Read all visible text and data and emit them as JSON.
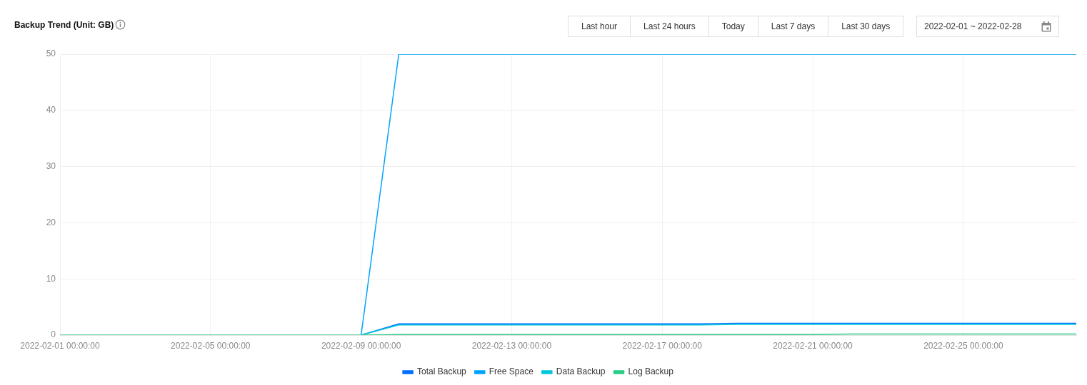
{
  "chart_data": {
    "type": "line",
    "title": "Backup Trend (Unit: GB)",
    "annotations": [
      "Last hour",
      "Last 24 hours",
      "Today",
      "Last 7 days",
      "Last 30 days",
      "2022-02-01 ~ 2022-02-28"
    ],
    "x": [
      "2022-02-01",
      "2022-02-02",
      "2022-02-03",
      "2022-02-04",
      "2022-02-05",
      "2022-02-06",
      "2022-02-07",
      "2022-02-08",
      "2022-02-09",
      "2022-02-10",
      "2022-02-11",
      "2022-02-12",
      "2022-02-13",
      "2022-02-14",
      "2022-02-15",
      "2022-02-16",
      "2022-02-17",
      "2022-02-18",
      "2022-02-19",
      "2022-02-20",
      "2022-02-21",
      "2022-02-22",
      "2022-02-23",
      "2022-02-24",
      "2022-02-25",
      "2022-02-26",
      "2022-02-27",
      "2022-02-28"
    ],
    "series": [
      {
        "name": "Total Backup",
        "color": "#006eff",
        "values": [
          null,
          null,
          null,
          null,
          null,
          null,
          null,
          null,
          0,
          2.0,
          2.0,
          2.0,
          2.0,
          2.0,
          2.0,
          2.0,
          2.0,
          2.0,
          2.1,
          2.1,
          2.1,
          2.1,
          2.1,
          2.1,
          2.1,
          2.1,
          2.1,
          2.1
        ]
      },
      {
        "name": "Free Space",
        "color": "#00a4ff",
        "values": [
          null,
          null,
          null,
          null,
          null,
          null,
          null,
          null,
          0,
          50,
          50,
          50,
          50,
          50,
          50,
          50,
          50,
          50,
          50,
          50,
          50,
          50,
          50,
          50,
          50,
          50,
          50,
          50
        ]
      },
      {
        "name": "Data Backup",
        "color": "#00c8dc",
        "values": [
          null,
          null,
          null,
          null,
          null,
          null,
          null,
          null,
          0,
          1.8,
          1.8,
          1.8,
          1.8,
          1.8,
          1.8,
          1.8,
          1.8,
          1.8,
          1.9,
          1.9,
          1.9,
          1.9,
          1.9,
          1.9,
          1.9,
          1.9,
          1.9,
          1.9
        ]
      },
      {
        "name": "Log Backup",
        "color": "#29cc85",
        "values": [
          0,
          0,
          0,
          0,
          0,
          0,
          0,
          0,
          0,
          0.1,
          0.1,
          0.1,
          0.1,
          0.1,
          0.1,
          0.1,
          0.1,
          0.1,
          0.1,
          0.1,
          0.1,
          0.2,
          0.2,
          0.2,
          0.2,
          0.2,
          0.2,
          0.2
        ]
      }
    ],
    "xlim": [
      "2022-02-01",
      "2022-02-28"
    ],
    "xticks": [
      {
        "value": "2022-02-01",
        "label": "2022-02-01 00:00:00"
      },
      {
        "value": "2022-02-05",
        "label": "2022-02-05 00:00:00"
      },
      {
        "value": "2022-02-09",
        "label": "2022-02-09 00:00:00"
      },
      {
        "value": "2022-02-13",
        "label": "2022-02-13 00:00:00"
      },
      {
        "value": "2022-02-17",
        "label": "2022-02-17 00:00:00"
      },
      {
        "value": "2022-02-21",
        "label": "2022-02-21 00:00:00"
      },
      {
        "value": "2022-02-25",
        "label": "2022-02-25 00:00:00"
      }
    ],
    "ylim": [
      0,
      50
    ],
    "yticks": [
      0,
      10,
      20,
      30,
      40,
      50
    ],
    "grid": true,
    "legend": "bottom",
    "marker": "none",
    "line_style": "solid"
  }
}
